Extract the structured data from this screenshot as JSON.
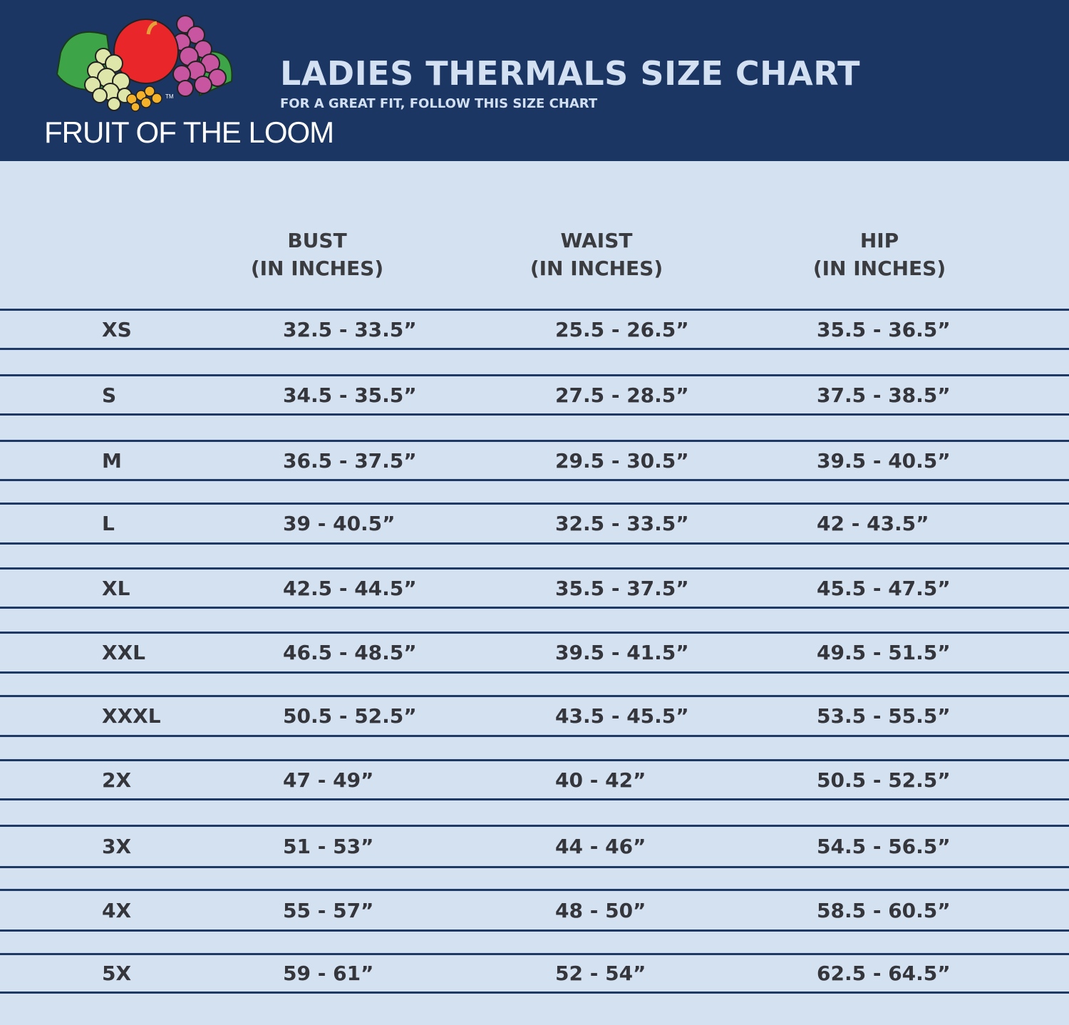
{
  "header": {
    "brand": "FRUIT OF THE LOOM",
    "title": "LADIES THERMALS SIZE CHART",
    "subtitle": "FOR A GREAT FIT, FOLLOW THIS SIZE CHART",
    "colors": {
      "navy": "#1b3663",
      "background": "#d4e1f1"
    }
  },
  "table": {
    "columns": [
      {
        "name": "BUST",
        "unit": "(IN INCHES)"
      },
      {
        "name": "WAIST",
        "unit": "(IN INCHES)"
      },
      {
        "name": "HIP",
        "unit": "(IN INCHES)"
      }
    ],
    "rows": [
      {
        "size": "XS",
        "bust": "32.5 - 33.5”",
        "waist": "25.5 - 26.5”",
        "hip": "35.5 - 36.5”"
      },
      {
        "size": "S",
        "bust": "34.5 - 35.5”",
        "waist": "27.5 - 28.5”",
        "hip": "37.5 - 38.5”"
      },
      {
        "size": "M",
        "bust": "36.5 - 37.5”",
        "waist": "29.5 - 30.5”",
        "hip": "39.5 - 40.5”"
      },
      {
        "size": "L",
        "bust": "39 - 40.5”",
        "waist": "32.5 - 33.5”",
        "hip": "42 - 43.5”"
      },
      {
        "size": "XL",
        "bust": "42.5 - 44.5”",
        "waist": "35.5 - 37.5”",
        "hip": "45.5 - 47.5”"
      },
      {
        "size": "XXL",
        "bust": "46.5 - 48.5”",
        "waist": "39.5 - 41.5”",
        "hip": "49.5 - 51.5”"
      },
      {
        "size": "XXXL",
        "bust": "50.5 - 52.5”",
        "waist": "43.5 - 45.5”",
        "hip": "53.5 - 55.5”"
      },
      {
        "size": "2X",
        "bust": "47 - 49”",
        "waist": "40 - 42”",
        "hip": "50.5 - 52.5”"
      },
      {
        "size": "3X",
        "bust": "51 - 53”",
        "waist": "44 - 46”",
        "hip": "54.5 - 56.5”"
      },
      {
        "size": "4X",
        "bust": "55 - 57”",
        "waist": "48 - 50”",
        "hip": "58.5 - 60.5”"
      },
      {
        "size": "5X",
        "bust": "59 - 61”",
        "waist": "52 - 54”",
        "hip": "62.5 - 64.5”"
      }
    ]
  }
}
